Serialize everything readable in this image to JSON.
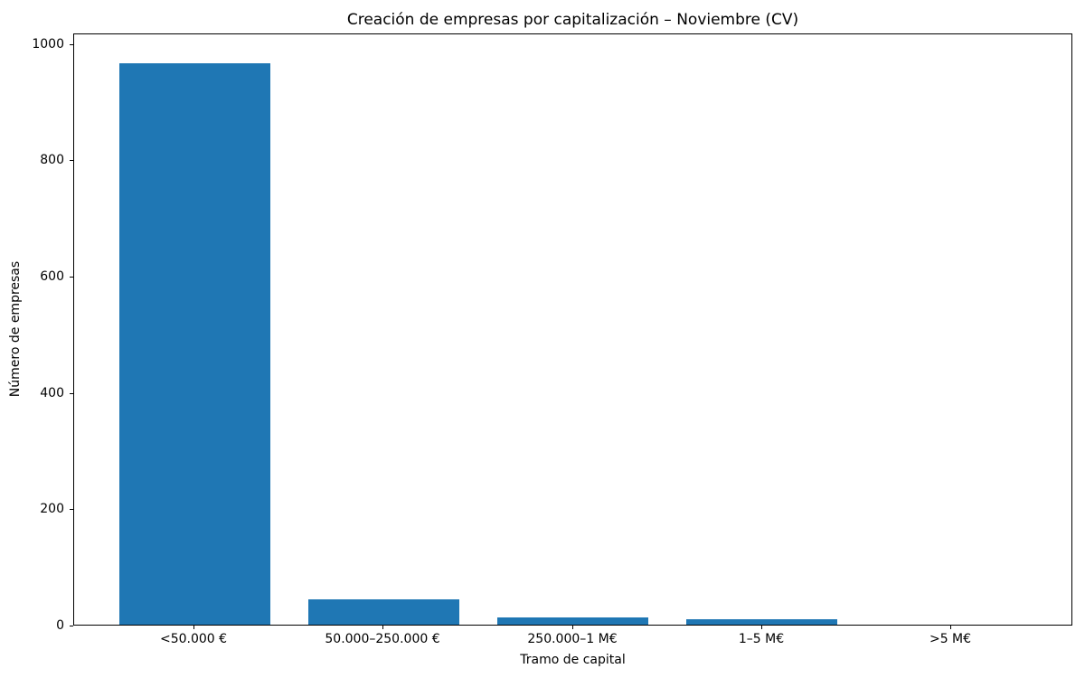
{
  "figure": {
    "background": "#ffffff",
    "text_color": "#000000",
    "axis_color": "#000000"
  },
  "chart_data": {
    "type": "bar",
    "title": "Creación de empresas por capitalización – Noviembre (CV)",
    "xlabel": "Tramo de capital",
    "ylabel": "Número de empresas",
    "categories": [
      "<50.000 €",
      "50.000–250.000 €",
      "250.000–1 M€",
      "1–5 M€",
      ">5 M€"
    ],
    "values": [
      965,
      44,
      12,
      10,
      0
    ],
    "yticks": [
      0,
      200,
      400,
      600,
      800,
      1000
    ],
    "ylim": [
      0,
      1018
    ],
    "bar_color": "#1f77b4",
    "grid": false,
    "legend_position": "none"
  }
}
